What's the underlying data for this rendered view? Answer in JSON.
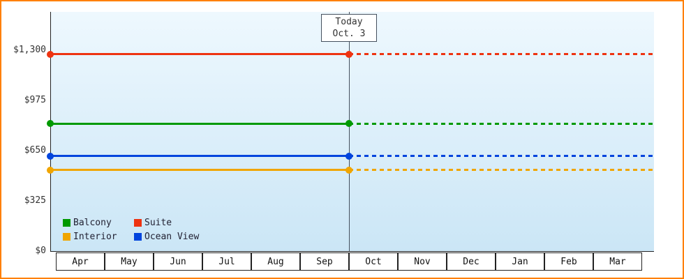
{
  "page": {
    "border_color": "#ff8000"
  },
  "chart_data": {
    "type": "line",
    "title": "",
    "xlabel": "",
    "ylabel": "",
    "x_categories": [
      "Apr",
      "May",
      "Jun",
      "Jul",
      "Aug",
      "Sep",
      "Oct",
      "Nov",
      "Dec",
      "Jan",
      "Feb",
      "Mar"
    ],
    "ylim": [
      0,
      1300
    ],
    "y_ticks": [
      {
        "value": 0,
        "label": "$0"
      },
      {
        "value": 325,
        "label": "$325"
      },
      {
        "value": 650,
        "label": "$650"
      },
      {
        "value": 975,
        "label": "$975"
      },
      {
        "value": 1300,
        "label": "$1,300"
      }
    ],
    "grid": false,
    "legend_position": "bottom-left-inside",
    "today_marker": {
      "label_line1": "Today",
      "label_line2": "Oct. 3",
      "month_boundary_index": 6,
      "past_style": "solid",
      "future_style": "dashed"
    },
    "series": [
      {
        "name": "Balcony",
        "color": "#009900",
        "value": 825
      },
      {
        "name": "Suite",
        "color": "#ee3311",
        "value": 1275
      },
      {
        "name": "Interior",
        "color": "#f0a500",
        "value": 525
      },
      {
        "name": "Ocean View",
        "color": "#0044dd",
        "value": 615
      }
    ]
  }
}
